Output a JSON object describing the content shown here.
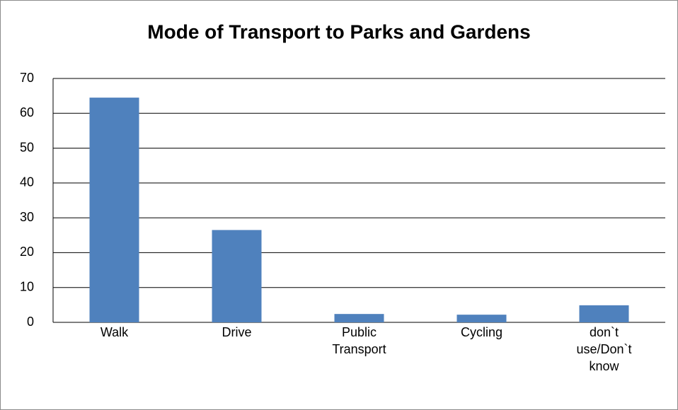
{
  "chart_data": {
    "type": "bar",
    "title": "Mode of Transport to Parks and Gardens",
    "categories": [
      "Walk",
      "Drive",
      "Public Transport",
      "Cycling",
      "don`t use/Don`t know"
    ],
    "values": [
      64.5,
      26.5,
      2.4,
      2.2,
      4.9
    ],
    "color": "#4f81bd",
    "ylim": [
      0,
      70
    ],
    "yticks": [
      0,
      10,
      20,
      30,
      40,
      50,
      60,
      70
    ],
    "grid": true
  }
}
